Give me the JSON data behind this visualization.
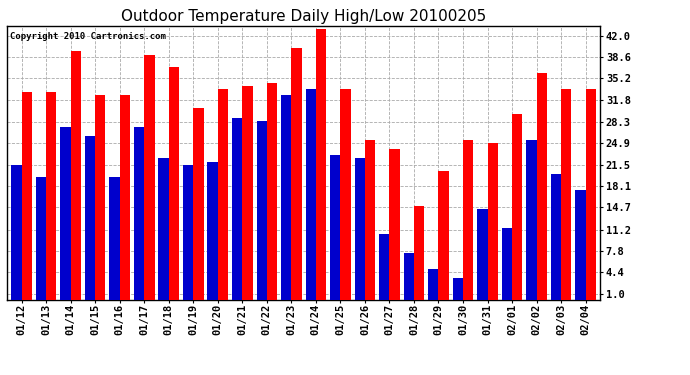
{
  "title": "Outdoor Temperature Daily High/Low 20100205",
  "copyright": "Copyright 2010 Cartronics.com",
  "dates": [
    "01/12",
    "01/13",
    "01/14",
    "01/15",
    "01/16",
    "01/17",
    "01/18",
    "01/19",
    "01/20",
    "01/21",
    "01/22",
    "01/23",
    "01/24",
    "01/25",
    "01/26",
    "01/27",
    "01/28",
    "01/29",
    "01/30",
    "01/31",
    "02/01",
    "02/02",
    "02/03",
    "02/04"
  ],
  "highs": [
    33.0,
    33.0,
    39.5,
    32.5,
    32.5,
    39.0,
    37.0,
    30.5,
    33.5,
    34.0,
    34.5,
    40.0,
    43.0,
    33.5,
    25.5,
    24.0,
    15.0,
    20.5,
    25.5,
    25.0,
    29.5,
    36.0,
    33.5,
    33.5
  ],
  "lows": [
    21.5,
    19.5,
    27.5,
    26.0,
    19.5,
    27.5,
    22.5,
    21.5,
    22.0,
    29.0,
    28.5,
    32.5,
    33.5,
    23.0,
    22.5,
    10.5,
    7.5,
    5.0,
    3.5,
    14.5,
    11.5,
    25.5,
    20.0,
    17.5
  ],
  "high_color": "#ff0000",
  "low_color": "#0000cc",
  "bar_width": 0.42,
  "yticks": [
    1.0,
    4.4,
    7.8,
    11.2,
    14.7,
    18.1,
    21.5,
    24.9,
    28.3,
    31.8,
    35.2,
    38.6,
    42.0
  ],
  "ymin": 0.0,
  "ymax": 43.5,
  "bg_color": "#ffffff",
  "grid_color": "#aaaaaa",
  "title_fontsize": 11,
  "tick_fontsize": 7.5
}
